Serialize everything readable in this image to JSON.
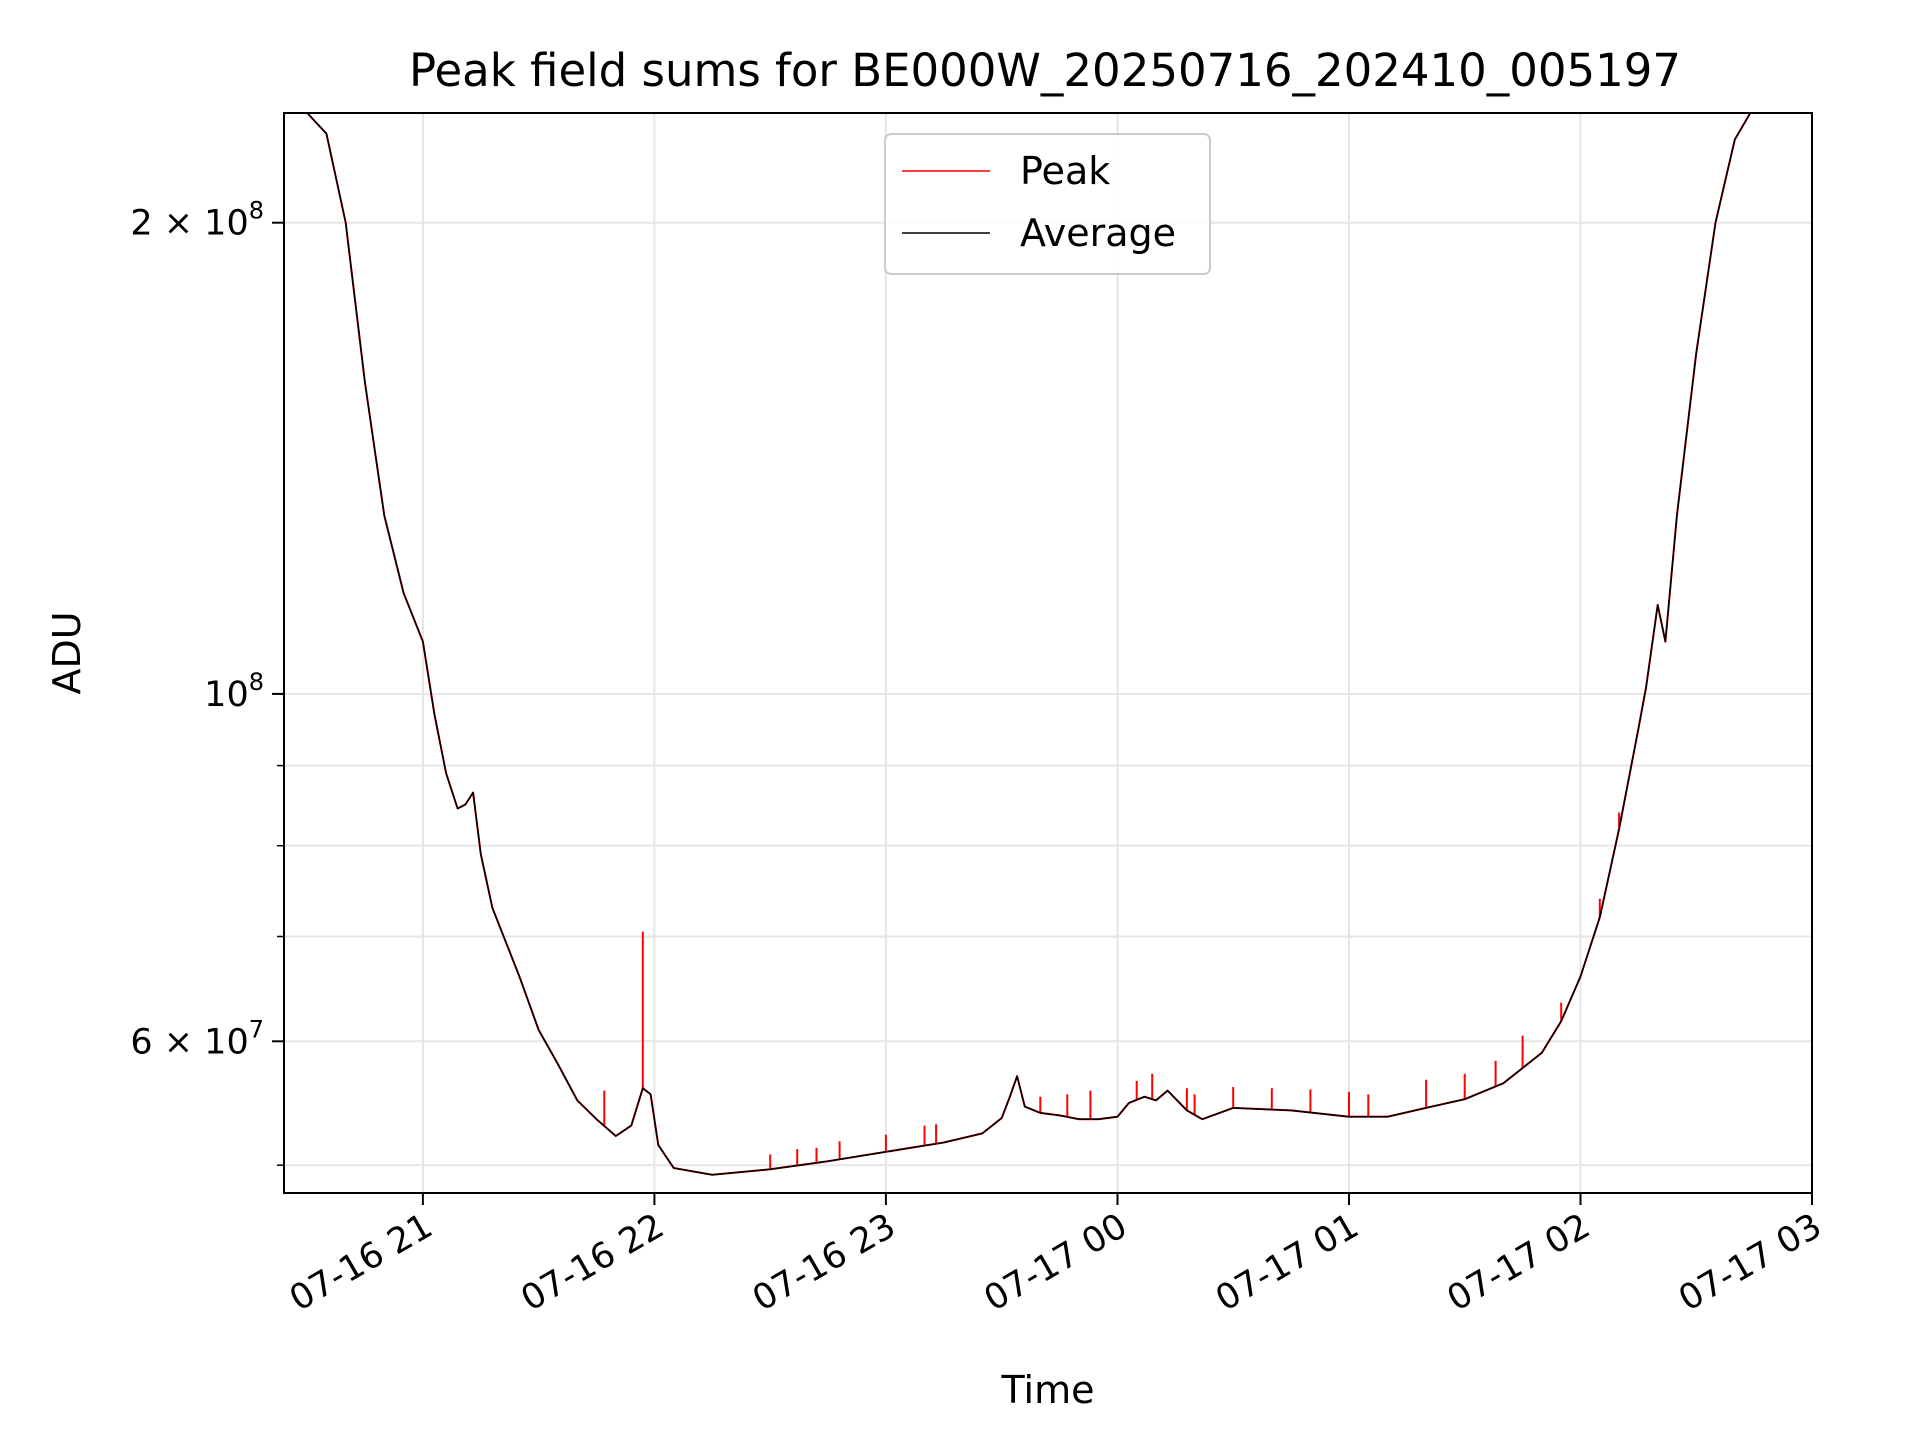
{
  "chart_data": {
    "type": "line",
    "title": "Peak field sums for BE000W_20250716_202410_005197",
    "xlabel": "Time",
    "ylabel": "ADU",
    "yscale": "log",
    "grid": true,
    "legend_placement": "upper center",
    "xlim": [
      "2025-07-16 20:24",
      "2025-07-17 03:00"
    ],
    "ylim": [
      48000000,
      235000000
    ],
    "x_ticks": [
      {
        "value": "2025-07-16 21:00",
        "label": "07-16 21"
      },
      {
        "value": "2025-07-16 22:00",
        "label": "07-16 22"
      },
      {
        "value": "2025-07-16 23:00",
        "label": "07-16 23"
      },
      {
        "value": "2025-07-17 00:00",
        "label": "07-17 00"
      },
      {
        "value": "2025-07-17 01:00",
        "label": "07-17 01"
      },
      {
        "value": "2025-07-17 02:00",
        "label": "07-17 02"
      },
      {
        "value": "2025-07-17 03:00",
        "label": "07-17 03"
      }
    ],
    "y_major_ticks": [
      {
        "value": 100000000,
        "mantissa": "",
        "base": "10",
        "exp": "8"
      },
      {
        "value": 200000000,
        "mantissa": "2 × ",
        "base": "10",
        "exp": "8"
      },
      {
        "value": 60000000,
        "mantissa": "6 × ",
        "base": "10",
        "exp": "7"
      }
    ],
    "y_minor_ticks": [
      50000000,
      70000000,
      80000000,
      90000000
    ],
    "series": [
      {
        "name": "Average",
        "color": "#000000",
        "points": [
          [
            "2025-07-16 20:24",
            235000000
          ],
          [
            "2025-07-16 20:30",
            235000000
          ],
          [
            "2025-07-16 20:35",
            228000000
          ],
          [
            "2025-07-16 20:40",
            200000000
          ],
          [
            "2025-07-16 20:45",
            158000000
          ],
          [
            "2025-07-16 20:50",
            130000000
          ],
          [
            "2025-07-16 20:55",
            116000000
          ],
          [
            "2025-07-16 21:00",
            108000000
          ],
          [
            "2025-07-16 21:03",
            97000000
          ],
          [
            "2025-07-16 21:06",
            89000000
          ],
          [
            "2025-07-16 21:09",
            84500000
          ],
          [
            "2025-07-16 21:11",
            85000000
          ],
          [
            "2025-07-16 21:13",
            86500000
          ],
          [
            "2025-07-16 21:15",
            79000000
          ],
          [
            "2025-07-16 21:18",
            73000000
          ],
          [
            "2025-07-16 21:25",
            66000000
          ],
          [
            "2025-07-16 21:30",
            61000000
          ],
          [
            "2025-07-16 21:35",
            58000000
          ],
          [
            "2025-07-16 21:40",
            55000000
          ],
          [
            "2025-07-16 21:45",
            53500000
          ],
          [
            "2025-07-16 21:50",
            52200000
          ],
          [
            "2025-07-16 21:54",
            53000000
          ],
          [
            "2025-07-16 21:57",
            56000000
          ],
          [
            "2025-07-16 21:59",
            55500000
          ],
          [
            "2025-07-16 22:01",
            51500000
          ],
          [
            "2025-07-16 22:05",
            49800000
          ],
          [
            "2025-07-16 22:15",
            49300000
          ],
          [
            "2025-07-16 22:30",
            49700000
          ],
          [
            "2025-07-16 22:45",
            50300000
          ],
          [
            "2025-07-16 23:00",
            51000000
          ],
          [
            "2025-07-16 23:15",
            51700000
          ],
          [
            "2025-07-16 23:25",
            52400000
          ],
          [
            "2025-07-16 23:30",
            53600000
          ],
          [
            "2025-07-16 23:32",
            55200000
          ],
          [
            "2025-07-16 23:34",
            57000000
          ],
          [
            "2025-07-16 23:36",
            54500000
          ],
          [
            "2025-07-16 23:40",
            54000000
          ],
          [
            "2025-07-16 23:45",
            53800000
          ],
          [
            "2025-07-16 23:50",
            53500000
          ],
          [
            "2025-07-16 23:55",
            53500000
          ],
          [
            "2025-07-17 00:00",
            53700000
          ],
          [
            "2025-07-17 00:03",
            54800000
          ],
          [
            "2025-07-17 00:07",
            55300000
          ],
          [
            "2025-07-17 00:10",
            55000000
          ],
          [
            "2025-07-17 00:13",
            55800000
          ],
          [
            "2025-07-17 00:18",
            54200000
          ],
          [
            "2025-07-17 00:22",
            53500000
          ],
          [
            "2025-07-17 00:30",
            54400000
          ],
          [
            "2025-07-17 00:45",
            54200000
          ],
          [
            "2025-07-17 01:00",
            53700000
          ],
          [
            "2025-07-17 01:10",
            53700000
          ],
          [
            "2025-07-17 01:20",
            54400000
          ],
          [
            "2025-07-17 01:30",
            55100000
          ],
          [
            "2025-07-17 01:40",
            56400000
          ],
          [
            "2025-07-17 01:50",
            59000000
          ],
          [
            "2025-07-17 01:55",
            61800000
          ],
          [
            "2025-07-17 02:00",
            66000000
          ],
          [
            "2025-07-17 02:05",
            72000000
          ],
          [
            "2025-07-17 02:10",
            82000000
          ],
          [
            "2025-07-17 02:15",
            95000000
          ],
          [
            "2025-07-17 02:17",
            101000000
          ],
          [
            "2025-07-17 02:20",
            114000000
          ],
          [
            "2025-07-17 02:22",
            108000000
          ],
          [
            "2025-07-17 02:25",
            130000000
          ],
          [
            "2025-07-17 02:30",
            165000000
          ],
          [
            "2025-07-17 02:35",
            200000000
          ],
          [
            "2025-07-17 02:40",
            226000000
          ],
          [
            "2025-07-17 02:44",
            235000000
          ],
          [
            "2025-07-17 03:00",
            235000000
          ]
        ]
      },
      {
        "name": "Peak",
        "color": "#ff0000",
        "spikes": [
          [
            "2025-07-16 21:47",
            55800000
          ],
          [
            "2025-07-16 21:57",
            70500000
          ],
          [
            "2025-07-16 22:30",
            50800000
          ],
          [
            "2025-07-16 22:37",
            51200000
          ],
          [
            "2025-07-16 22:42",
            51300000
          ],
          [
            "2025-07-16 22:48",
            51800000
          ],
          [
            "2025-07-16 23:00",
            52300000
          ],
          [
            "2025-07-16 23:10",
            53000000
          ],
          [
            "2025-07-16 23:13",
            53100000
          ],
          [
            "2025-07-16 23:40",
            55300000
          ],
          [
            "2025-07-16 23:47",
            55500000
          ],
          [
            "2025-07-16 23:53",
            55800000
          ],
          [
            "2025-07-17 00:05",
            56600000
          ],
          [
            "2025-07-17 00:09",
            57200000
          ],
          [
            "2025-07-17 00:18",
            56000000
          ],
          [
            "2025-07-17 00:20",
            55500000
          ],
          [
            "2025-07-17 00:30",
            56100000
          ],
          [
            "2025-07-17 00:40",
            56000000
          ],
          [
            "2025-07-17 00:50",
            55900000
          ],
          [
            "2025-07-17 01:00",
            55700000
          ],
          [
            "2025-07-17 01:05",
            55500000
          ],
          [
            "2025-07-17 01:20",
            56700000
          ],
          [
            "2025-07-17 01:30",
            57200000
          ],
          [
            "2025-07-17 01:38",
            58300000
          ],
          [
            "2025-07-17 01:45",
            60500000
          ],
          [
            "2025-07-17 01:55",
            63500000
          ],
          [
            "2025-07-17 02:05",
            74000000
          ],
          [
            "2025-07-17 02:10",
            84000000
          ]
        ]
      }
    ]
  }
}
